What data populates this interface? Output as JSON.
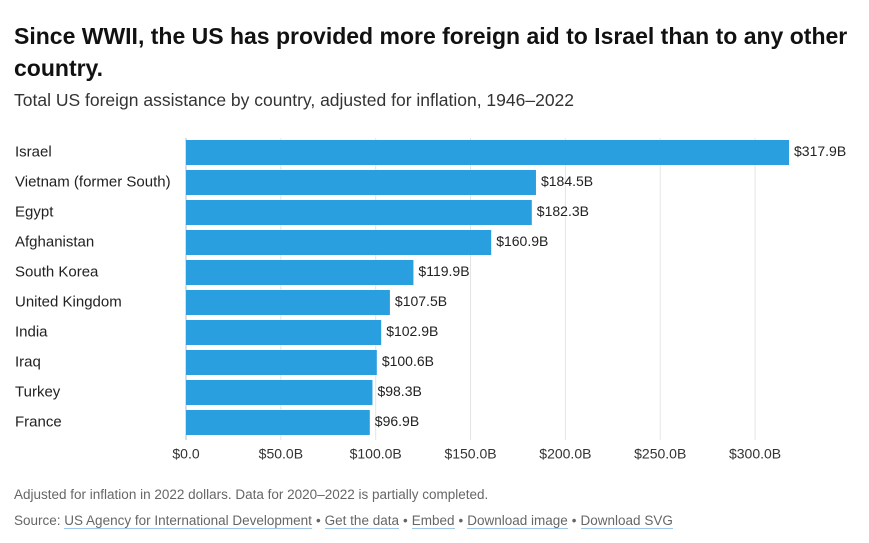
{
  "title": "Since WWII, the US has provided more foreign aid to Israel than to any other country.",
  "subtitle": "Total US foreign assistance by country, adjusted for inflation, 1946–2022",
  "notes": "Adjusted for inflation in 2022 dollars. Data for 2020–2022 is partially completed.",
  "source": {
    "prefix": "Source:",
    "org_link": "US Agency for International Development",
    "get_data": "Get the data",
    "embed": "Embed",
    "download_image": "Download image",
    "download_svg": "Download SVG",
    "separator": "•"
  },
  "colors": {
    "bar": "#2a9fdf",
    "grid": "#e4e4e4",
    "axis": "#bbbbbb"
  },
  "chart_data": {
    "type": "bar",
    "orientation": "horizontal",
    "categories": [
      "Israel",
      "Vietnam (former South)",
      "Egypt",
      "Afghanistan",
      "South Korea",
      "United Kingdom",
      "India",
      "Iraq",
      "Turkey",
      "France"
    ],
    "values": [
      317.9,
      184.5,
      182.3,
      160.9,
      119.9,
      107.5,
      102.9,
      100.6,
      98.3,
      96.9
    ],
    "value_labels": [
      "$317.9B",
      "$184.5B",
      "$182.3B",
      "$160.9B",
      "$119.9B",
      "$107.5B",
      "$102.9B",
      "$100.6B",
      "$98.3B",
      "$96.9B"
    ],
    "x_ticks": [
      0,
      50,
      100,
      150,
      200,
      250,
      300
    ],
    "x_tick_labels": [
      "$0.0",
      "$50.0B",
      "$100.0B",
      "$150.0B",
      "$200.0B",
      "$250.0B",
      "$300.0B"
    ],
    "xlim": [
      0,
      320
    ],
    "unit": "billions USD (2022 dollars)",
    "xlabel": "",
    "ylabel": ""
  }
}
